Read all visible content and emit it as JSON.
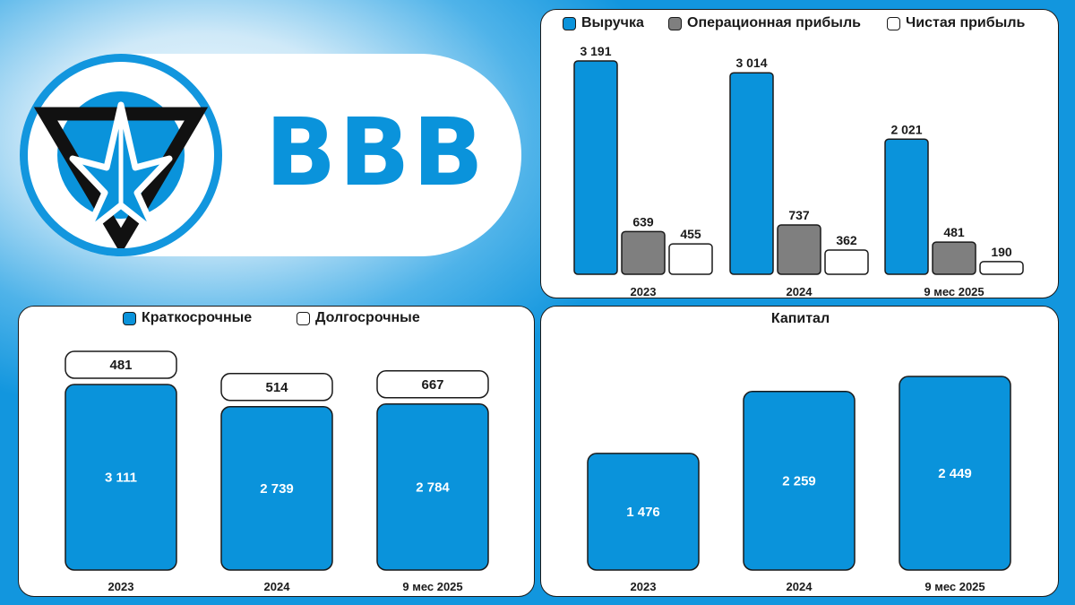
{
  "header": {
    "ticker": "BBB"
  },
  "colors": {
    "accent": "#0a93db",
    "gray": "#7f7f7f",
    "white": "#ffffff",
    "dark": "#1a1a1a"
  },
  "chart_data": [
    {
      "type": "bar",
      "categories": [
        "2023",
        "2024",
        "9 мес 2025"
      ],
      "series": [
        {
          "name": "Выручка",
          "values": [
            3191,
            3014,
            2021
          ],
          "labels": [
            "3 191",
            "3 014",
            "2 021"
          ],
          "color": "#0a93db"
        },
        {
          "name": "Операционная прибыль",
          "values": [
            639,
            737,
            481
          ],
          "labels": [
            "639",
            "737",
            "481"
          ],
          "color": "#7f7f7f"
        },
        {
          "name": "Чистая прибыль",
          "values": [
            455,
            362,
            190
          ],
          "labels": [
            "455",
            "362",
            "190"
          ],
          "color": "#ffffff"
        }
      ],
      "legend_position": "top"
    },
    {
      "type": "bar",
      "stacked": true,
      "categories": [
        "2023",
        "2024",
        "9 мес 2025"
      ],
      "series": [
        {
          "name": "Краткосрочные",
          "values": [
            3111,
            2739,
            2784
          ],
          "labels": [
            "3 111",
            "2 739",
            "2 784"
          ],
          "color": "#0a93db"
        },
        {
          "name": "Долгосрочные",
          "values": [
            481,
            514,
            667
          ],
          "labels": [
            "481",
            "514",
            "667"
          ],
          "color": "#ffffff"
        }
      ],
      "legend_position": "top"
    },
    {
      "type": "bar",
      "title": "Капитал",
      "categories": [
        "2023",
        "2024",
        "9 мес 2025"
      ],
      "series": [
        {
          "values": [
            1476,
            2259,
            2449
          ],
          "labels": [
            "1 476",
            "2 259",
            "2 449"
          ],
          "color": "#0a93db"
        }
      ]
    }
  ]
}
